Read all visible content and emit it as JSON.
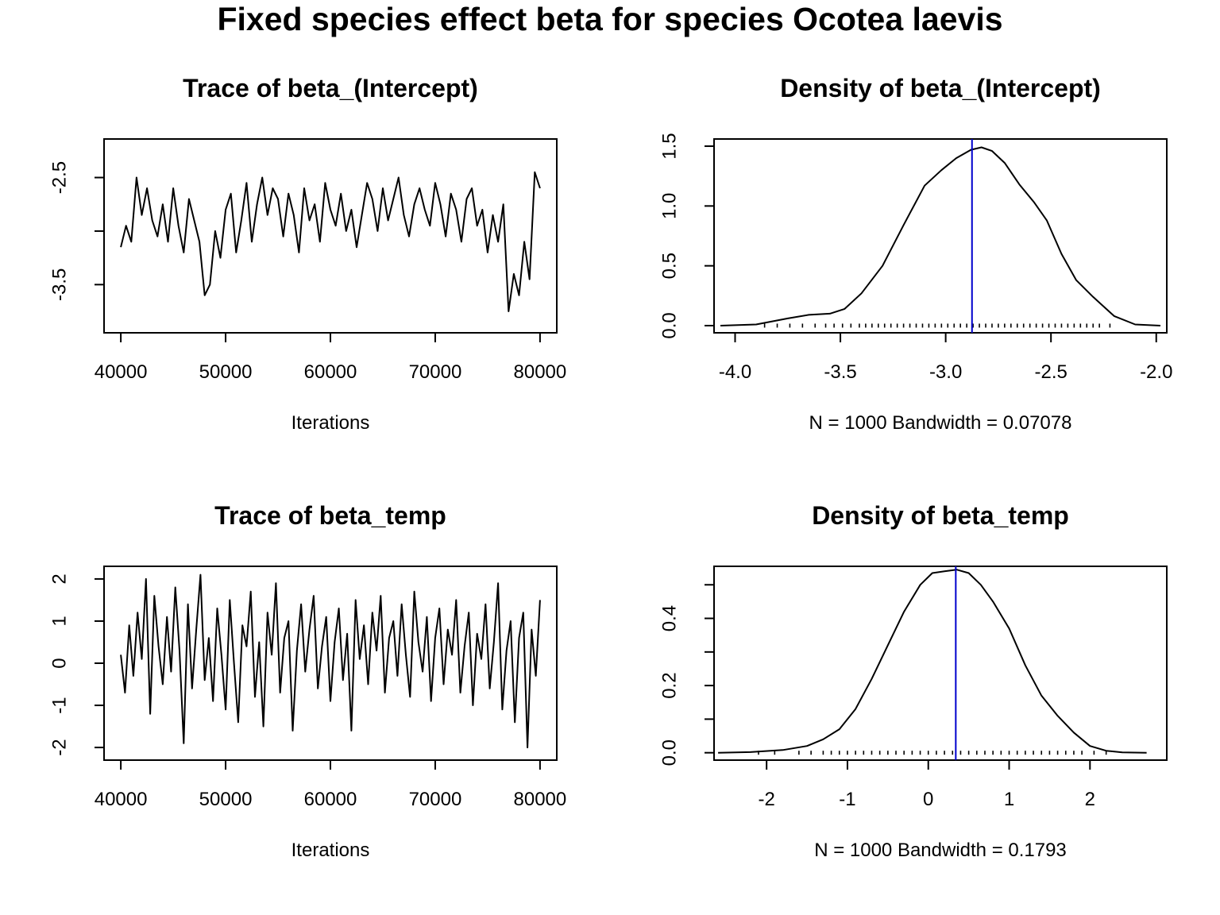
{
  "figure": {
    "title": "Fixed species effect beta for species Ocotea laevis"
  },
  "chart_data": [
    {
      "id": "trace-intercept",
      "type": "line",
      "title": "Trace of beta_(Intercept)",
      "xlabel": "Iterations",
      "ylabel": "",
      "xlim": [
        38400,
        81600
      ],
      "ylim": [
        -3.95,
        -2.14
      ],
      "xticks": [
        40000,
        50000,
        60000,
        70000,
        80000
      ],
      "xtick_labels": [
        "40000",
        "50000",
        "60000",
        "70000",
        "80000"
      ],
      "yticks": [
        -3.5,
        -3.0,
        -2.5
      ],
      "ytick_labels": [
        "-3.5",
        "",
        "-2.5"
      ],
      "grid": false,
      "line_color": "#000000",
      "series": [
        {
          "x": [
            40000,
            40500,
            41000,
            41500,
            42000,
            42500,
            43000,
            43500,
            44000,
            44500,
            45000,
            45500,
            46000,
            46500,
            47000,
            47500,
            48000,
            48500,
            49000,
            49500,
            50000,
            50500,
            51000,
            51500,
            52000,
            52500,
            53000,
            53500,
            54000,
            54500,
            55000,
            55500,
            56000,
            56500,
            57000,
            57500,
            58000,
            58500,
            59000,
            59500,
            60000,
            60500,
            61000,
            61500,
            62000,
            62500,
            63000,
            63500,
            64000,
            64500,
            65000,
            65500,
            66000,
            66500,
            67000,
            67500,
            68000,
            68500,
            69000,
            69500,
            70000,
            70500,
            71000,
            71500,
            72000,
            72500,
            73000,
            73500,
            74000,
            74500,
            75000,
            75500,
            76000,
            76500,
            77000,
            77500,
            78000,
            78500,
            79000,
            79500,
            80000
          ],
          "y": [
            -3.15,
            -2.95,
            -3.1,
            -2.5,
            -2.85,
            -2.6,
            -2.9,
            -3.05,
            -2.75,
            -3.1,
            -2.6,
            -2.95,
            -3.2,
            -2.7,
            -2.9,
            -3.1,
            -3.6,
            -3.5,
            -3.0,
            -3.25,
            -2.8,
            -2.65,
            -3.2,
            -2.9,
            -2.55,
            -3.1,
            -2.75,
            -2.5,
            -2.85,
            -2.6,
            -2.7,
            -3.05,
            -2.65,
            -2.85,
            -3.2,
            -2.6,
            -2.9,
            -2.75,
            -3.1,
            -2.55,
            -2.8,
            -2.95,
            -2.65,
            -3.0,
            -2.8,
            -3.15,
            -2.85,
            -2.55,
            -2.7,
            -3.0,
            -2.6,
            -2.9,
            -2.7,
            -2.5,
            -2.85,
            -3.05,
            -2.75,
            -2.6,
            -2.8,
            -2.95,
            -2.55,
            -2.75,
            -3.05,
            -2.65,
            -2.8,
            -3.1,
            -2.7,
            -2.6,
            -2.95,
            -2.8,
            -3.2,
            -2.85,
            -3.1,
            -2.75,
            -3.75,
            -3.4,
            -3.6,
            -3.1,
            -3.45,
            -2.45,
            -2.6
          ]
        }
      ]
    },
    {
      "id": "density-intercept",
      "type": "line",
      "title": "Density of beta_(Intercept)",
      "xlabel": "N = 1000   Bandwidth = 0.07078",
      "ylabel": "",
      "xlim": [
        -4.1,
        -1.95
      ],
      "ylim": [
        -0.06,
        1.56
      ],
      "xticks": [
        -4.0,
        -3.5,
        -3.0,
        -2.5,
        -2.0
      ],
      "xtick_labels": [
        "-4.0",
        "-3.5",
        "-3.0",
        "-2.5",
        "-2.0"
      ],
      "yticks": [
        0.0,
        0.5,
        1.0,
        1.5
      ],
      "ytick_labels": [
        "0.0",
        "0.5",
        "1.0",
        "1.5"
      ],
      "grid": false,
      "line_color": "#000000",
      "vline": -2.875,
      "vline_color": "#0000cd",
      "series": [
        {
          "x": [
            -4.07,
            -3.9,
            -3.75,
            -3.65,
            -3.55,
            -3.48,
            -3.4,
            -3.3,
            -3.2,
            -3.1,
            -3.02,
            -2.95,
            -2.88,
            -2.83,
            -2.78,
            -2.72,
            -2.65,
            -2.58,
            -2.52,
            -2.45,
            -2.38,
            -2.3,
            -2.2,
            -2.1,
            -1.98
          ],
          "y": [
            0.0,
            0.01,
            0.06,
            0.09,
            0.1,
            0.14,
            0.27,
            0.5,
            0.84,
            1.17,
            1.3,
            1.4,
            1.47,
            1.49,
            1.46,
            1.36,
            1.18,
            1.03,
            0.88,
            0.6,
            0.38,
            0.24,
            0.08,
            0.01,
            0.0
          ]
        }
      ],
      "rug": [
        -3.86,
        -3.8,
        -3.74,
        -3.68,
        -3.62,
        -3.57,
        -3.53,
        -3.49,
        -3.45,
        -3.41,
        -3.38,
        -3.35,
        -3.32,
        -3.29,
        -3.26,
        -3.23,
        -3.2,
        -3.17,
        -3.14,
        -3.11,
        -3.08,
        -3.05,
        -3.02,
        -2.99,
        -2.96,
        -2.93,
        -2.9,
        -2.87,
        -2.84,
        -2.81,
        -2.78,
        -2.75,
        -2.72,
        -2.69,
        -2.66,
        -2.63,
        -2.6,
        -2.57,
        -2.54,
        -2.51,
        -2.48,
        -2.45,
        -2.42,
        -2.39,
        -2.36,
        -2.33,
        -2.3,
        -2.27,
        -2.22
      ]
    },
    {
      "id": "trace-temp",
      "type": "line",
      "title": "Trace of beta_temp",
      "xlabel": "Iterations",
      "ylabel": "",
      "xlim": [
        38400,
        81600
      ],
      "ylim": [
        -2.3,
        2.3
      ],
      "xticks": [
        40000,
        50000,
        60000,
        70000,
        80000
      ],
      "xtick_labels": [
        "40000",
        "50000",
        "60000",
        "70000",
        "80000"
      ],
      "yticks": [
        -2,
        -1,
        0,
        1,
        2
      ],
      "ytick_labels": [
        "-2",
        "-1",
        "0",
        "1",
        "2"
      ],
      "grid": false,
      "line_color": "#000000",
      "series": [
        {
          "x": [
            40000,
            40400,
            40800,
            41200,
            41600,
            42000,
            42400,
            42800,
            43200,
            43600,
            44000,
            44400,
            44800,
            45200,
            45600,
            46000,
            46400,
            46800,
            47200,
            47600,
            48000,
            48400,
            48800,
            49200,
            49600,
            50000,
            50400,
            50800,
            51200,
            51600,
            52000,
            52400,
            52800,
            53200,
            53600,
            54000,
            54400,
            54800,
            55200,
            55600,
            56000,
            56400,
            56800,
            57200,
            57600,
            58000,
            58400,
            58800,
            59200,
            59600,
            60000,
            60400,
            60800,
            61200,
            61600,
            62000,
            62400,
            62800,
            63200,
            63600,
            64000,
            64400,
            64800,
            65200,
            65600,
            66000,
            66400,
            66800,
            67200,
            67600,
            68000,
            68400,
            68800,
            69200,
            69600,
            70000,
            70400,
            70800,
            71200,
            71600,
            72000,
            72400,
            72800,
            73200,
            73600,
            74000,
            74400,
            74800,
            75200,
            75600,
            76000,
            76400,
            76800,
            77200,
            77600,
            78000,
            78400,
            78800,
            79200,
            79600,
            80000
          ],
          "y": [
            0.2,
            -0.7,
            0.9,
            -0.3,
            1.2,
            0.1,
            2.0,
            -1.2,
            1.6,
            0.4,
            -0.5,
            1.1,
            -0.2,
            1.8,
            0.3,
            -1.9,
            1.4,
            -0.6,
            0.8,
            2.1,
            -0.4,
            0.6,
            -0.9,
            1.3,
            0.2,
            -1.1,
            1.5,
            0.0,
            -1.4,
            0.9,
            0.4,
            1.7,
            -0.8,
            0.5,
            -1.5,
            1.2,
            0.2,
            1.9,
            -0.7,
            0.6,
            1.0,
            -1.6,
            0.3,
            1.4,
            -0.2,
            0.8,
            1.6,
            -0.6,
            0.4,
            1.1,
            -0.9,
            0.5,
            1.3,
            -0.4,
            0.7,
            -1.6,
            1.5,
            0.1,
            0.9,
            -0.5,
            1.2,
            0.3,
            1.6,
            -0.7,
            0.6,
            1.0,
            -0.3,
            1.4,
            0.2,
            -0.8,
            1.7,
            0.5,
            -0.2,
            1.1,
            -0.9,
            0.6,
            1.3,
            -0.5,
            0.8,
            0.2,
            1.5,
            -0.7,
            0.4,
            1.2,
            -1.0,
            0.7,
            0.1,
            1.4,
            -0.6,
            0.5,
            1.9,
            -1.1,
            0.3,
            1.0,
            -1.4,
            0.6,
            1.2,
            -2.0,
            0.8,
            -0.3,
            1.5
          ]
        }
      ]
    },
    {
      "id": "density-temp",
      "type": "line",
      "title": "Density of beta_temp",
      "xlabel": "N = 1000   Bandwidth = 0.1793",
      "ylabel": "",
      "xlim": [
        -2.65,
        2.95
      ],
      "ylim": [
        -0.022,
        0.555
      ],
      "xticks": [
        -2,
        -1,
        0,
        1,
        2
      ],
      "xtick_labels": [
        "-2",
        "-1",
        "0",
        "1",
        "2"
      ],
      "yticks": [
        0.0,
        0.1,
        0.2,
        0.3,
        0.4,
        0.5
      ],
      "ytick_labels": [
        "0.0",
        "",
        "0.2",
        "",
        "0.4",
        ""
      ],
      "grid": false,
      "line_color": "#000000",
      "vline": 0.34,
      "vline_color": "#0000cd",
      "series": [
        {
          "x": [
            -2.6,
            -2.2,
            -1.8,
            -1.5,
            -1.3,
            -1.1,
            -0.9,
            -0.7,
            -0.5,
            -0.3,
            -0.1,
            0.05,
            0.2,
            0.35,
            0.5,
            0.65,
            0.8,
            1.0,
            1.2,
            1.4,
            1.6,
            1.8,
            2.0,
            2.2,
            2.4,
            2.7
          ],
          "y": [
            0.0,
            0.002,
            0.008,
            0.02,
            0.04,
            0.07,
            0.13,
            0.22,
            0.32,
            0.42,
            0.5,
            0.535,
            0.54,
            0.545,
            0.535,
            0.5,
            0.45,
            0.37,
            0.26,
            0.17,
            0.11,
            0.06,
            0.02,
            0.006,
            0.001,
            0.0
          ]
        }
      ],
      "rug": [
        -2.1,
        -1.9,
        -1.6,
        -1.45,
        -1.3,
        -1.2,
        -1.1,
        -1.0,
        -0.9,
        -0.8,
        -0.7,
        -0.6,
        -0.5,
        -0.4,
        -0.3,
        -0.2,
        -0.1,
        0.0,
        0.1,
        0.2,
        0.3,
        0.4,
        0.5,
        0.6,
        0.7,
        0.8,
        0.9,
        1.0,
        1.1,
        1.2,
        1.3,
        1.4,
        1.5,
        1.6,
        1.7,
        1.8,
        1.9,
        2.05,
        2.2
      ]
    }
  ]
}
